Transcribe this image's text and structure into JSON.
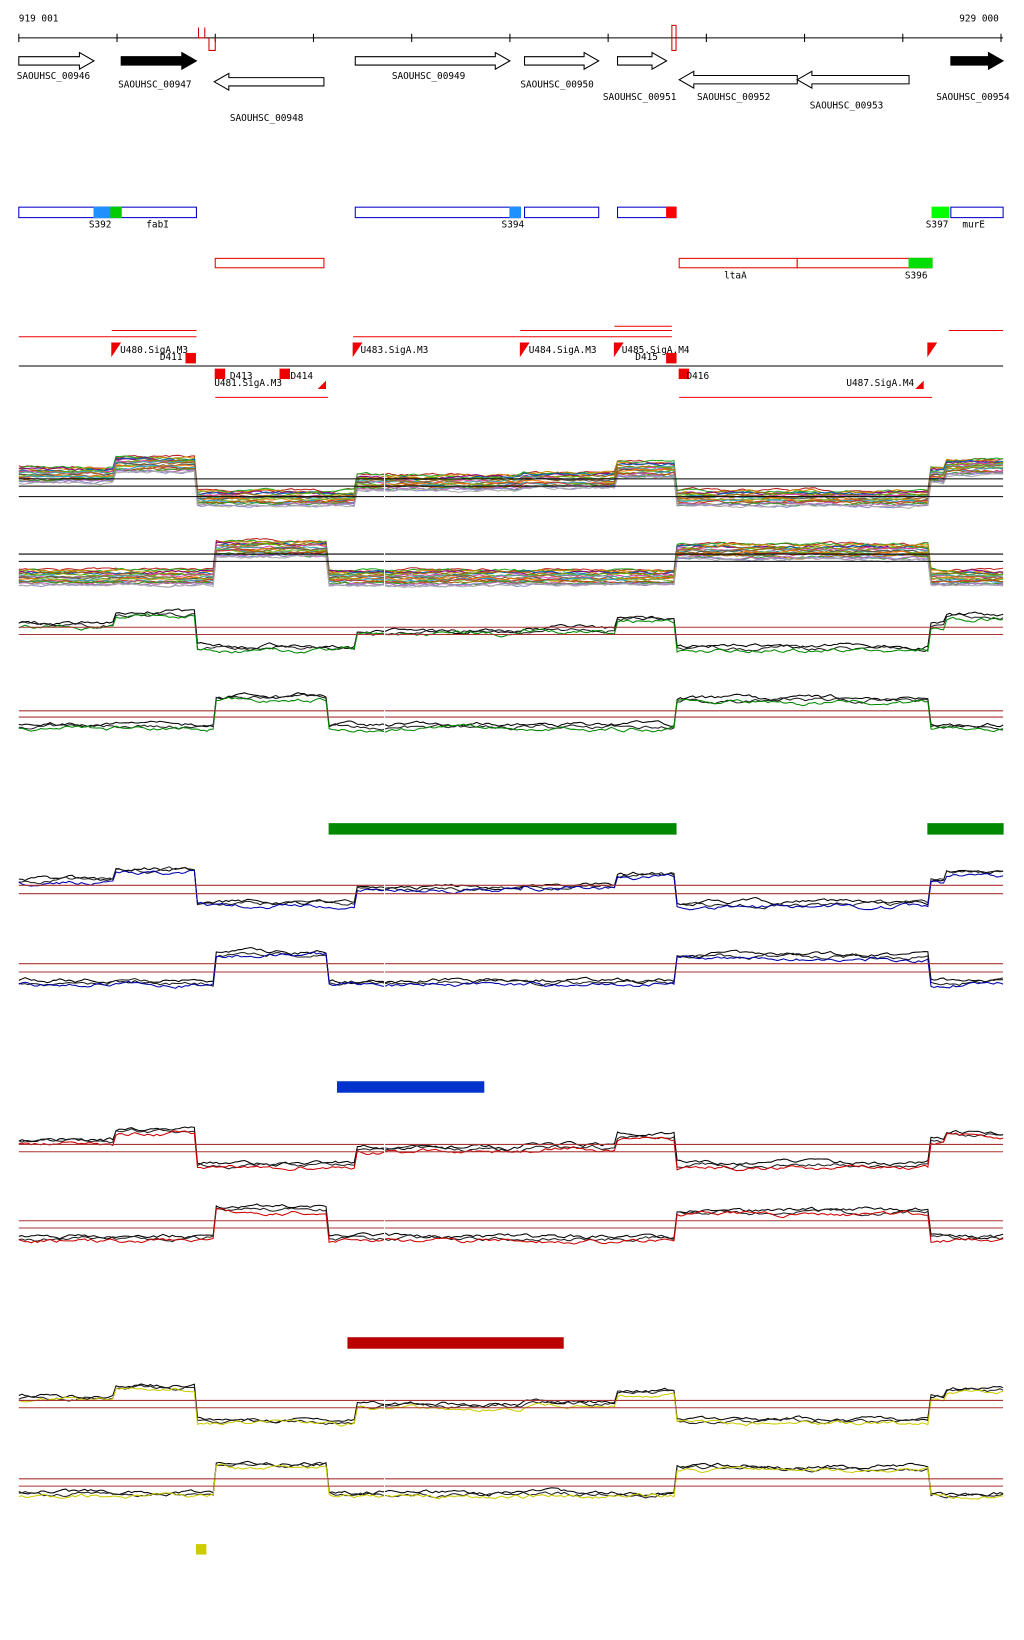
{
  "header": {
    "start": "919 001",
    "end": "929 000"
  },
  "genes": [
    "SAOUHSC_00946",
    "SAOUHSC_00947",
    "SAOUHSC_00948",
    "SAOUHSC_00949",
    "SAOUHSC_00950",
    "SAOUHSC_00951",
    "SAOUHSC_00952",
    "SAOUHSC_00953",
    "SAOUHSC_00954"
  ],
  "features": [
    "S392",
    "fabI",
    "S394",
    "S397",
    "murE",
    "ltaA",
    "S396"
  ],
  "promoters": [
    "U480.SigA.M3",
    "D411",
    "U481.SigA.M3",
    "D413",
    "D414",
    "U483.SigA.M3",
    "U484.SigA.M3",
    "U485.SigA.M4",
    "D415",
    "D416",
    "U487.SigA.M4"
  ]
}
